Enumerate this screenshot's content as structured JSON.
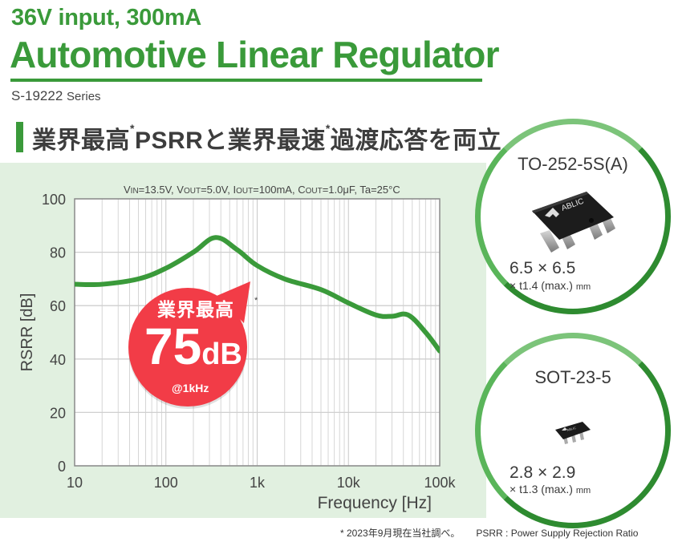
{
  "header": {
    "subtitle": "36V input, 300mA",
    "title": "Automotive Linear Regulator",
    "series_code": "S-19222",
    "series_word": "Series",
    "accent_color": "#3a9a3a"
  },
  "headline": {
    "part1": "業界最高",
    "star1": "*",
    "part2": "PSRRと業界最速",
    "star2": "*",
    "part3": "過渡応答を両立"
  },
  "conditions": {
    "vin": "V",
    "vin_sub": "IN",
    "vin_val": "=13.5V, ",
    "vout": "V",
    "vout_sub": "OUT",
    "vout_val": "=5.0V, ",
    "iout": "I",
    "iout_sub": "OUT",
    "iout_val": "=100mA, ",
    "cout": "C",
    "cout_sub": "OUT",
    "cout_val": "=1.0μF, ",
    "ta": "Ta=25°C"
  },
  "badge": {
    "label": "業界最高",
    "value": "75",
    "unit": "dB",
    "at": "@1kHz",
    "note_mark": "*",
    "color": "#f23c47"
  },
  "packages": [
    {
      "name": "TO-252-5S(A)",
      "dim_main": "6.5 × 6.5",
      "dim_sub": "× t1.4 (max.)",
      "unit": "mm",
      "marking": "ABLIC"
    },
    {
      "name": "SOT-23-5",
      "dim_main": "2.8 × 2.9",
      "dim_sub": "× t1.3 (max.)",
      "unit": "mm",
      "marking": "ABLIC"
    }
  ],
  "footnote": {
    "note": "* 2023年9月現在当社調べ。",
    "definition": "PSRR : Power Supply Rejection Ratio"
  },
  "chart_data": {
    "type": "line",
    "title": "",
    "subtitle": "VIN=13.5V, VOUT=5.0V, IOUT=100mA, COUT=1.0μF, Ta=25°C",
    "xlabel": "Frequency [Hz]",
    "ylabel": "RSRR [dB]",
    "xscale": "log",
    "xlim": [
      10,
      100000
    ],
    "ylim": [
      0,
      100
    ],
    "xticks": [
      10,
      100,
      1000,
      10000,
      100000
    ],
    "xtick_labels": [
      "10",
      "100",
      "1k",
      "10k",
      "100k"
    ],
    "yticks": [
      0,
      20,
      40,
      60,
      80,
      100
    ],
    "ytick_labels": [
      "0",
      "20",
      "40",
      "60",
      "80",
      "100"
    ],
    "grid": true,
    "legend": null,
    "line_color": "#3a9a3a",
    "series": [
      {
        "name": "PSRR",
        "x": [
          10,
          20,
          50,
          100,
          200,
          350,
          600,
          1000,
          2000,
          5000,
          10000,
          20000,
          30000,
          45000,
          70000,
          100000
        ],
        "values": [
          68,
          68,
          70,
          74,
          80,
          85.5,
          81,
          75,
          70,
          66,
          61,
          56.5,
          56,
          56.5,
          50,
          43
        ]
      }
    ],
    "annotations": [
      {
        "text": "業界最高 75dB @1kHz",
        "x": 1000,
        "y": 75
      }
    ]
  }
}
